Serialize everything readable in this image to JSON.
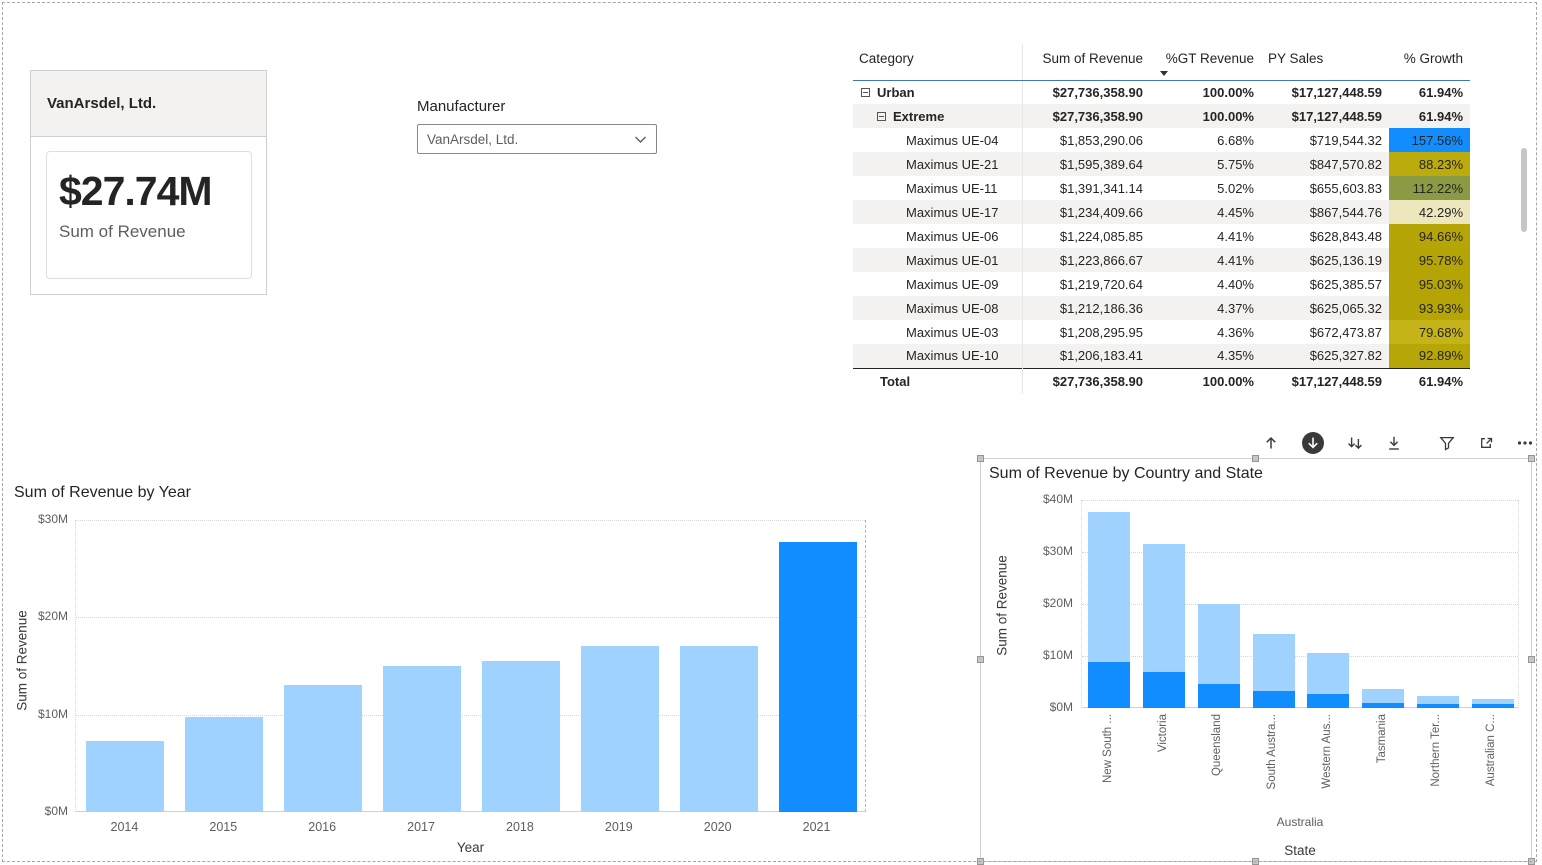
{
  "kpi": {
    "manufacturer": "VanArsdel, Ltd.",
    "value": "$27.74M",
    "label": "Sum of Revenue"
  },
  "slicer": {
    "label": "Manufacturer",
    "value": "VanArsdel, Ltd."
  },
  "matrix": {
    "headers": {
      "category": "Category",
      "revenue": "Sum of Revenue",
      "gt": "%GT Revenue",
      "py": "PY Sales",
      "growth": "% Growth"
    },
    "sort": {
      "column": "%GT Revenue",
      "direction": "descending"
    },
    "rows": [
      {
        "category": "Urban",
        "level": 0,
        "bold": true,
        "expandable": true,
        "shade": false,
        "revenue": "$27,736,358.90",
        "gt": "100.00%",
        "py": "$17,127,448.59",
        "growth": "61.94%",
        "growth_bg": ""
      },
      {
        "category": "Extreme",
        "level": 1,
        "bold": true,
        "expandable": true,
        "shade": true,
        "revenue": "$27,736,358.90",
        "gt": "100.00%",
        "py": "$17,127,448.59",
        "growth": "61.94%",
        "growth_bg": ""
      },
      {
        "category": "Maximus UE-04",
        "level": 2,
        "bold": false,
        "expandable": false,
        "shade": false,
        "revenue": "$1,853,290.06",
        "gt": "6.68%",
        "py": "$719,544.32",
        "growth": "157.56%",
        "growth_bg": "#118DFF"
      },
      {
        "category": "Maximus UE-21",
        "level": 2,
        "bold": false,
        "expandable": false,
        "shade": true,
        "revenue": "$1,595,389.64",
        "gt": "5.75%",
        "py": "$847,570.82",
        "growth": "88.23%",
        "growth_bg": "#BCAB0C"
      },
      {
        "category": "Maximus UE-11",
        "level": 2,
        "bold": false,
        "expandable": false,
        "shade": false,
        "revenue": "$1,391,341.14",
        "gt": "5.02%",
        "py": "$655,603.83",
        "growth": "112.22%",
        "growth_bg": "#8C9A43"
      },
      {
        "category": "Maximus UE-17",
        "level": 2,
        "bold": false,
        "expandable": false,
        "shade": true,
        "revenue": "$1,234,409.66",
        "gt": "4.45%",
        "py": "$867,544.76",
        "growth": "42.29%",
        "growth_bg": "#EDE7BD"
      },
      {
        "category": "Maximus UE-06",
        "level": 2,
        "bold": false,
        "expandable": false,
        "shade": false,
        "revenue": "$1,224,085.85",
        "gt": "4.41%",
        "py": "$628,843.48",
        "growth": "94.66%",
        "growth_bg": "#B6A506"
      },
      {
        "category": "Maximus UE-01",
        "level": 2,
        "bold": false,
        "expandable": false,
        "shade": true,
        "revenue": "$1,223,866.67",
        "gt": "4.41%",
        "py": "$625,136.19",
        "growth": "95.78%",
        "growth_bg": "#B5A405"
      },
      {
        "category": "Maximus UE-09",
        "level": 2,
        "bold": false,
        "expandable": false,
        "shade": false,
        "revenue": "$1,219,720.64",
        "gt": "4.40%",
        "py": "$625,385.57",
        "growth": "95.03%",
        "growth_bg": "#B5A405"
      },
      {
        "category": "Maximus UE-08",
        "level": 2,
        "bold": false,
        "expandable": false,
        "shade": true,
        "revenue": "$1,212,186.36",
        "gt": "4.37%",
        "py": "$625,065.32",
        "growth": "93.93%",
        "growth_bg": "#B6A506"
      },
      {
        "category": "Maximus UE-03",
        "level": 2,
        "bold": false,
        "expandable": false,
        "shade": false,
        "revenue": "$1,208,295.95",
        "gt": "4.36%",
        "py": "$672,473.87",
        "growth": "79.68%",
        "growth_bg": "#C5B418"
      },
      {
        "category": "Maximus UE-10",
        "level": 2,
        "bold": false,
        "expandable": false,
        "shade": true,
        "revenue": "$1,206,183.41",
        "gt": "4.35%",
        "py": "$625,327.82",
        "growth": "92.89%",
        "growth_bg": "#B7A607"
      }
    ],
    "total": {
      "category": "Total",
      "revenue": "$27,736,358.90",
      "gt": "100.00%",
      "py": "$17,127,448.59",
      "growth": "61.94%"
    }
  },
  "toolbar": {
    "icons": [
      "drill-up",
      "drill-down-mode-on",
      "expand-all-down-one-level",
      "go-to-next-level",
      "filter",
      "focus-mode",
      "more-options"
    ]
  },
  "chart_data": [
    {
      "type": "bar",
      "title": "Sum of Revenue by Year",
      "xlabel": "Year",
      "ylabel": "Sum of Revenue",
      "unit": "millions USD",
      "categories": [
        "2014",
        "2015",
        "2016",
        "2017",
        "2018",
        "2019",
        "2020",
        "2021"
      ],
      "values": [
        7.3,
        9.8,
        13.1,
        15.0,
        15.5,
        17.1,
        17.1,
        27.74
      ],
      "ylim": [
        0,
        30
      ],
      "ytick_values": [
        0,
        10,
        20,
        30
      ],
      "ytick_labels": [
        "$0M",
        "$10M",
        "$20M",
        "$30M"
      ],
      "grid": true,
      "highlight_index": 7,
      "bar_color": "#A0D2FF",
      "highlight_color": "#118DFF"
    },
    {
      "type": "stacked-bar",
      "title": "Sum of Revenue by Country and State",
      "xlabel": "State",
      "ylabel": "Sum of Revenue",
      "unit": "millions USD",
      "country_group": "Australia",
      "categories": [
        "New South ...",
        "Victoria",
        "Queensland",
        "South Austra...",
        "Western Aus...",
        "Tasmania",
        "Northern Ter...",
        "Australian C..."
      ],
      "series": [
        {
          "name": "highlighted-base",
          "color": "#118DFF",
          "values": [
            8.8,
            7.0,
            4.6,
            3.3,
            2.7,
            1.0,
            0.8,
            0.7
          ]
        },
        {
          "name": "remainder-top",
          "color": "#A0D2FF",
          "values": [
            28.9,
            24.5,
            15.4,
            10.9,
            7.9,
            2.7,
            1.5,
            1.0
          ]
        }
      ],
      "totals": [
        37.7,
        31.5,
        20.0,
        14.2,
        10.6,
        3.7,
        2.3,
        1.7
      ],
      "ylim": [
        0,
        40
      ],
      "ytick_values": [
        0,
        10,
        20,
        30,
        40
      ],
      "ytick_labels": [
        "$0M",
        "$10M",
        "$20M",
        "$30M",
        "$40M"
      ],
      "grid": true
    }
  ]
}
